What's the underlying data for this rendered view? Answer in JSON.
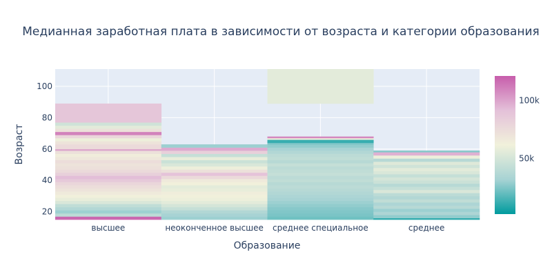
{
  "chart_data": {
    "type": "heatmap",
    "title": "Медианная заработная плата в зависимости от возраста и категории образования",
    "xlabel": "Образование",
    "ylabel": "Возраст",
    "categories": [
      "высшее",
      "неоконченное высшее",
      "среднее специальное",
      "среднее"
    ],
    "ylim": [
      15,
      111
    ],
    "yticks": [
      20,
      40,
      60,
      80,
      100
    ],
    "colorbar": {
      "min": 2000,
      "max": 121000,
      "ticks": [
        {
          "value": 50000,
          "label": "50k"
        },
        {
          "value": 100000,
          "label": "100k"
        }
      ],
      "colorscale": [
        "#009B9E",
        "#A7D3D4",
        "#F1F1DB",
        "#E4C1D9",
        "#C75DAB"
      ]
    },
    "grid": true,
    "columns": [
      {
        "category": "высшее",
        "bands": [
          [
            15,
            17,
            118000
          ],
          [
            17,
            19,
            40000
          ],
          [
            19,
            21,
            30000
          ],
          [
            21,
            23,
            36000
          ],
          [
            23,
            25,
            42000
          ],
          [
            25,
            27,
            52000
          ],
          [
            27,
            29,
            58000
          ],
          [
            29,
            31,
            62000
          ],
          [
            31,
            33,
            66000
          ],
          [
            33,
            35,
            70000
          ],
          [
            35,
            37,
            74000
          ],
          [
            37,
            39,
            78000
          ],
          [
            39,
            41,
            86000
          ],
          [
            41,
            43,
            92000
          ],
          [
            43,
            45,
            82000
          ],
          [
            45,
            47,
            76000
          ],
          [
            47,
            49,
            72000
          ],
          [
            49,
            51,
            70000
          ],
          [
            51,
            53,
            74000
          ],
          [
            53,
            55,
            68000
          ],
          [
            55,
            57,
            64000
          ],
          [
            57,
            59,
            72000
          ],
          [
            59,
            60,
            100000
          ],
          [
            60,
            63,
            76000
          ],
          [
            63,
            65,
            70000
          ],
          [
            65,
            67,
            60000
          ],
          [
            67,
            69,
            78000
          ],
          [
            69,
            71,
            110000
          ],
          [
            71,
            73,
            72000
          ],
          [
            73,
            75,
            56000
          ],
          [
            75,
            77,
            48000
          ],
          [
            77,
            89,
            88000
          ]
        ]
      },
      {
        "category": "неоконченное высшее",
        "bands": [
          [
            15,
            17,
            30000
          ],
          [
            17,
            19,
            32000
          ],
          [
            19,
            21,
            36000
          ],
          [
            21,
            23,
            44000
          ],
          [
            23,
            25,
            50000
          ],
          [
            25,
            27,
            56000
          ],
          [
            27,
            29,
            60000
          ],
          [
            29,
            31,
            62000
          ],
          [
            31,
            33,
            64000
          ],
          [
            33,
            35,
            58000
          ],
          [
            35,
            37,
            56000
          ],
          [
            37,
            39,
            62000
          ],
          [
            39,
            41,
            66000
          ],
          [
            41,
            43,
            76000
          ],
          [
            43,
            45,
            90000
          ],
          [
            45,
            47,
            72000
          ],
          [
            47,
            49,
            60000
          ],
          [
            49,
            51,
            52000
          ],
          [
            51,
            53,
            46000
          ],
          [
            53,
            55,
            58000
          ],
          [
            55,
            57,
            44000
          ],
          [
            57,
            59,
            82000
          ],
          [
            59,
            61,
            98000
          ],
          [
            61,
            63,
            30000
          ]
        ]
      },
      {
        "category": "среднее специальное",
        "bands": [
          [
            15,
            17,
            22000
          ],
          [
            17,
            19,
            24000
          ],
          [
            19,
            21,
            25000
          ],
          [
            21,
            23,
            26000
          ],
          [
            23,
            25,
            28000
          ],
          [
            25,
            27,
            30000
          ],
          [
            27,
            29,
            32000
          ],
          [
            29,
            31,
            34000
          ],
          [
            31,
            33,
            36000
          ],
          [
            33,
            35,
            38000
          ],
          [
            35,
            37,
            40000
          ],
          [
            37,
            39,
            38000
          ],
          [
            39,
            41,
            42000
          ],
          [
            41,
            43,
            40000
          ],
          [
            43,
            45,
            44000
          ],
          [
            45,
            47,
            42000
          ],
          [
            47,
            49,
            40000
          ],
          [
            49,
            51,
            44000
          ],
          [
            51,
            53,
            38000
          ],
          [
            53,
            55,
            42000
          ],
          [
            55,
            57,
            40000
          ],
          [
            57,
            59,
            36000
          ],
          [
            59,
            61,
            32000
          ],
          [
            61,
            63,
            28000
          ],
          [
            63,
            64,
            24000
          ],
          [
            64,
            66,
            12000
          ],
          [
            66,
            67,
            60000
          ],
          [
            67,
            68,
            108000
          ],
          [
            89,
            111,
            56000
          ]
        ]
      },
      {
        "category": "среднее",
        "bands": [
          [
            15,
            16,
            10000
          ],
          [
            16,
            18,
            28000
          ],
          [
            18,
            20,
            34000
          ],
          [
            20,
            22,
            30000
          ],
          [
            22,
            24,
            38000
          ],
          [
            24,
            26,
            34000
          ],
          [
            26,
            28,
            42000
          ],
          [
            28,
            30,
            36000
          ],
          [
            30,
            32,
            40000
          ],
          [
            32,
            34,
            52000
          ],
          [
            34,
            36,
            44000
          ],
          [
            36,
            38,
            38000
          ],
          [
            38,
            40,
            46000
          ],
          [
            40,
            42,
            50000
          ],
          [
            42,
            44,
            44000
          ],
          [
            44,
            46,
            52000
          ],
          [
            46,
            48,
            56000
          ],
          [
            48,
            50,
            48000
          ],
          [
            50,
            52,
            54000
          ],
          [
            52,
            54,
            38000
          ],
          [
            54,
            56,
            60000
          ],
          [
            56,
            58,
            96000
          ],
          [
            58,
            59,
            26000
          ]
        ]
      }
    ]
  }
}
